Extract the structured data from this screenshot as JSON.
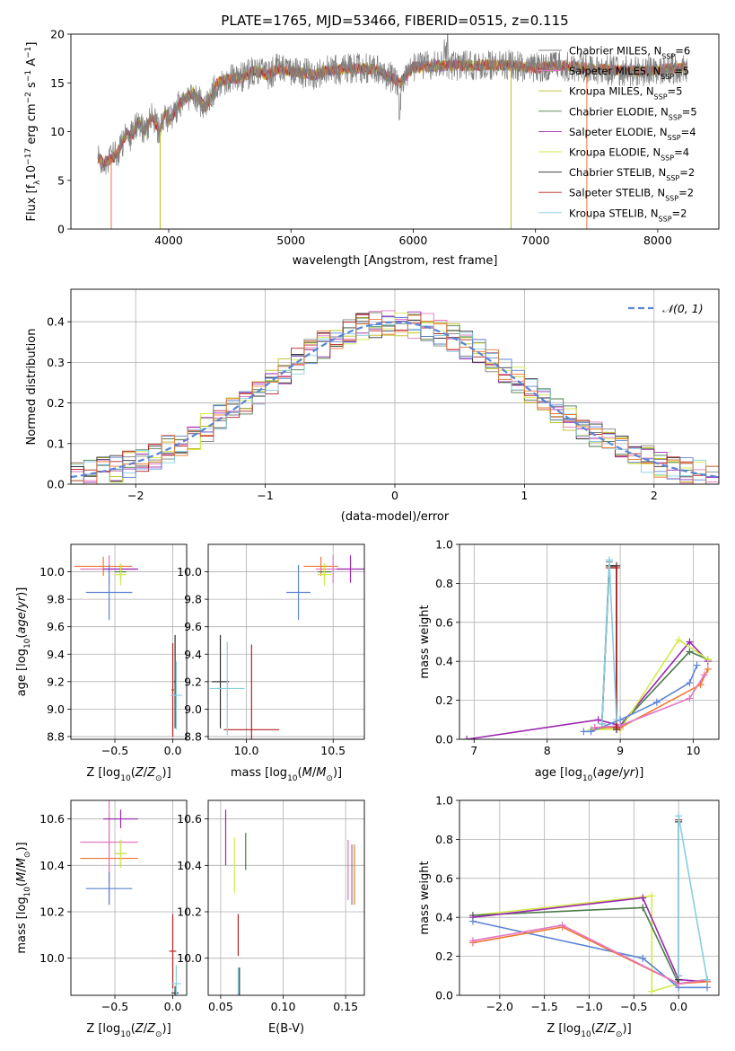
{
  "colors": {
    "Chabrier MILES": "#808080",
    "Salpeter MILES": "#e377c2",
    "Kroupa MILES": "#bcbd22",
    "Chabrier ELODIE": "#4a7a4a",
    "Salpeter ELODIE": "#9b27b0",
    "Kroupa ELODIE": "#d4ea4a",
    "Chabrier STELIB": "#333333",
    "Salpeter STELIB": "#b22222",
    "Kroupa STELIB": "#87cfe0",
    "blue": "#5b84d6",
    "orange": "#ee7733"
  },
  "chart_data": [
    {
      "id": "spectrum",
      "type": "line",
      "title": "PLATE=1765, MJD=53466, FIBERID=0515, z=0.115",
      "xlabel": "wavelength [Angstrom, rest frame]",
      "ylabel": "Flux [f_λ 10^-17 erg cm^-2 s^-1 A^-1]",
      "xlim": [
        3200,
        8500
      ],
      "ylim": [
        0,
        20
      ],
      "xticks": [
        4000,
        5000,
        6000,
        7000,
        8000
      ],
      "yticks": [
        0,
        5,
        10,
        15,
        20
      ],
      "grid": false,
      "legend_position": "right",
      "legend": [
        {
          "base": "Chabrier MILES, N",
          "sub": "SSP",
          "tail": "=6",
          "key": "Chabrier MILES"
        },
        {
          "base": "Salpeter MILES, N",
          "sub": "SSP",
          "tail": "=5",
          "key": "Salpeter MILES"
        },
        {
          "base": "Kroupa MILES, N",
          "sub": "SSP",
          "tail": "=5",
          "key": "Kroupa MILES"
        },
        {
          "base": "Chabrier ELODIE, N",
          "sub": "SSP",
          "tail": "=5",
          "key": "Chabrier ELODIE"
        },
        {
          "base": "Salpeter ELODIE, N",
          "sub": "SSP",
          "tail": "=4",
          "key": "Salpeter ELODIE"
        },
        {
          "base": "Kroupa ELODIE, N",
          "sub": "SSP",
          "tail": "=4",
          "key": "Kroupa ELODIE"
        },
        {
          "base": "Chabrier STELIB, N",
          "sub": "SSP",
          "tail": "=2",
          "key": "Chabrier STELIB"
        },
        {
          "base": "Salpeter STELIB, N",
          "sub": "SSP",
          "tail": "=2",
          "key": "Salpeter STELIB"
        },
        {
          "base": "Kroupa STELIB, N",
          "sub": "SSP",
          "tail": "=2",
          "key": "Kroupa STELIB"
        }
      ],
      "envelope": [
        [
          3420,
          7.3
        ],
        [
          3470,
          6.8
        ],
        [
          3550,
          7.4
        ],
        [
          3600,
          8.2
        ],
        [
          3650,
          9.8
        ],
        [
          3700,
          9.5
        ],
        [
          3750,
          11.0
        ],
        [
          3800,
          10.0
        ],
        [
          3860,
          11.5
        ],
        [
          3930,
          10.0
        ],
        [
          3970,
          12.0
        ],
        [
          4000,
          11.0
        ],
        [
          4100,
          13.0
        ],
        [
          4200,
          14.0
        ],
        [
          4300,
          12.5
        ],
        [
          4400,
          15.0
        ],
        [
          4500,
          15.5
        ],
        [
          4600,
          15.5
        ],
        [
          4700,
          16.3
        ],
        [
          4800,
          15.8
        ],
        [
          4900,
          16.5
        ],
        [
          5000,
          16.2
        ],
        [
          5100,
          16.0
        ],
        [
          5200,
          15.8
        ],
        [
          5300,
          16.3
        ],
        [
          5500,
          16.5
        ],
        [
          5700,
          16.4
        ],
        [
          5890,
          15.0
        ],
        [
          6000,
          16.6
        ],
        [
          6300,
          16.8
        ],
        [
          6560,
          16.8
        ],
        [
          6800,
          16.8
        ],
        [
          7000,
          16.5
        ],
        [
          7200,
          16.8
        ],
        [
          7500,
          16.4
        ],
        [
          7800,
          16.2
        ],
        [
          8000,
          16.3
        ],
        [
          8250,
          16.6
        ]
      ],
      "drops": [
        {
          "x": 3530,
          "series": "orange",
          "top": 7.2
        },
        {
          "x": 3930,
          "series": "Kroupa MILES",
          "top": 10.0
        },
        {
          "x": 6800,
          "series": "Kroupa MILES",
          "top": 16.5
        },
        {
          "x": 7420,
          "series": "orange",
          "top": 16.6
        }
      ]
    },
    {
      "id": "residuals",
      "type": "histogram",
      "xlabel": "(data-model)/error",
      "ylabel": "Normed distribution",
      "xlim": [
        -2.5,
        2.5
      ],
      "ylim": [
        0,
        0.48
      ],
      "xticks": [
        -2,
        -1,
        0,
        1,
        2
      ],
      "yticks": [
        0.0,
        0.1,
        0.2,
        0.3,
        0.4
      ],
      "grid": true,
      "legend_position": "top-right",
      "legend_label": "𝒩(0, 1)",
      "bin_edges_start": -2.5,
      "bin_width": 0.1,
      "base_curve": "normal(0,1)",
      "series_keys": [
        "Chabrier MILES",
        "Salpeter MILES",
        "Kroupa MILES",
        "Chabrier ELODIE",
        "Salpeter ELODIE",
        "Kroupa ELODIE",
        "Chabrier STELIB",
        "Salpeter STELIB",
        "Kroupa STELIB",
        "blue",
        "orange"
      ]
    },
    {
      "id": "age_vs_Z",
      "type": "errorbar",
      "xlabel": "Z [log10(Z/Z⊙)]",
      "ylabel": "age  [log10(age/yr)]",
      "xlim": [
        -0.88,
        0.12
      ],
      "ylim": [
        8.78,
        10.2
      ],
      "xticks": [
        -0.5,
        0.0
      ],
      "yticks": [
        8.8,
        9.0,
        9.2,
        9.4,
        9.6,
        9.8,
        10.0
      ],
      "grid": true,
      "points": [
        {
          "x": -0.6,
          "xe": 0.25,
          "y": 10.04,
          "ye": 0.07,
          "c": "orange"
        },
        {
          "x": -0.55,
          "xe": 0.25,
          "y": 10.02,
          "ye": 0.1,
          "c": "Salpeter MILES"
        },
        {
          "x": -0.55,
          "xe": 0.2,
          "y": 9.85,
          "ye": 0.2,
          "c": "blue"
        },
        {
          "x": -0.45,
          "xe": 0.15,
          "y": 10.02,
          "ye": 0.04,
          "c": "Salpeter ELODIE"
        },
        {
          "x": -0.45,
          "xe": 0.05,
          "y": 10.0,
          "ye": 0.06,
          "c": "Chabrier ELODIE"
        },
        {
          "x": -0.45,
          "xe": 0.05,
          "y": 9.98,
          "ye": 0.08,
          "c": "Kroupa ELODIE"
        },
        {
          "x": 0.0,
          "xe": 0.01,
          "y": 9.14,
          "ye": 0.34,
          "c": "Salpeter STELIB"
        },
        {
          "x": 0.02,
          "xe": 0.01,
          "y": 9.2,
          "ye": 0.34,
          "c": "Chabrier STELIB"
        },
        {
          "x": 0.03,
          "xe": 0.05,
          "y": 9.1,
          "ye": 0.25,
          "c": "Kroupa STELIB"
        }
      ]
    },
    {
      "id": "age_vs_mass",
      "type": "errorbar",
      "xlabel": "mass [log10(M/M⊙)]",
      "ylabel": "",
      "xlim": [
        9.78,
        10.68
      ],
      "ylim": [
        8.78,
        10.2
      ],
      "xticks": [
        10.0,
        10.5
      ],
      "yticks": [
        8.8,
        9.0,
        9.2,
        9.4,
        9.6,
        9.8,
        10.0
      ],
      "grid": true,
      "points": [
        {
          "x": 10.43,
          "xe": 0.1,
          "y": 10.04,
          "ye": 0.07,
          "c": "orange"
        },
        {
          "x": 10.5,
          "xe": 0.1,
          "y": 10.02,
          "ye": 0.1,
          "c": "Salpeter MILES"
        },
        {
          "x": 10.3,
          "xe": 0.07,
          "y": 9.85,
          "ye": 0.2,
          "c": "blue"
        },
        {
          "x": 10.6,
          "xe": 0.08,
          "y": 10.02,
          "ye": 0.1,
          "c": "Salpeter ELODIE"
        },
        {
          "x": 10.45,
          "xe": 0.04,
          "y": 10.0,
          "ye": 0.06,
          "c": "Chabrier ELODIE"
        },
        {
          "x": 10.45,
          "xe": 0.04,
          "y": 9.98,
          "ye": 0.08,
          "c": "Kroupa ELODIE"
        },
        {
          "x": 10.03,
          "xe": 0.16,
          "y": 8.85,
          "ye": 0.62,
          "c": "Salpeter STELIB"
        },
        {
          "x": 9.85,
          "xe": 0.05,
          "y": 9.2,
          "ye": 0.34,
          "c": "Chabrier STELIB"
        },
        {
          "x": 9.89,
          "xe": 0.1,
          "y": 9.15,
          "ye": 0.34,
          "c": "Kroupa STELIB"
        }
      ]
    },
    {
      "id": "weight_vs_age",
      "type": "line",
      "xlabel": "age  [log10(age/yr)]",
      "ylabel": "mass weight",
      "xlim": [
        6.8,
        10.35
      ],
      "ylim": [
        0,
        1.0
      ],
      "xticks": [
        7,
        8,
        9,
        10
      ],
      "yticks": [
        0.0,
        0.2,
        0.4,
        0.6,
        0.8,
        1.0
      ],
      "grid": true,
      "series": [
        {
          "c": "Salpeter ELODIE",
          "x": [
            6.9,
            8.7,
            9.0,
            9.95,
            10.2
          ],
          "y": [
            0.0,
            0.1,
            0.07,
            0.5,
            0.4
          ]
        },
        {
          "c": "Chabrier ELODIE",
          "x": [
            8.6,
            9.0,
            9.95,
            10.2
          ],
          "y": [
            0.05,
            0.07,
            0.45,
            0.41
          ]
        },
        {
          "c": "Kroupa ELODIE",
          "x": [
            8.6,
            9.0,
            9.8,
            10.2
          ],
          "y": [
            0.05,
            0.05,
            0.51,
            0.41
          ]
        },
        {
          "c": "blue",
          "x": [
            8.5,
            8.6,
            9.0,
            9.5,
            9.95,
            10.05
          ],
          "y": [
            0.04,
            0.04,
            0.1,
            0.19,
            0.29,
            0.38
          ]
        },
        {
          "c": "orange",
          "x": [
            8.65,
            9.0,
            10.1,
            10.2
          ],
          "y": [
            0.06,
            0.06,
            0.28,
            0.36
          ]
        },
        {
          "c": "Salpeter MILES",
          "x": [
            8.65,
            9.0,
            9.95,
            10.15
          ],
          "y": [
            0.06,
            0.07,
            0.21,
            0.33
          ]
        },
        {
          "c": "Chabrier MILES",
          "x": [
            8.75,
            8.85
          ],
          "y": [
            0.08,
            0.91
          ]
        },
        {
          "c": "Chabrier STELIB",
          "x": [
            8.75,
            8.85,
            8.95,
            8.95
          ],
          "y": [
            0.08,
            0.89,
            0.89,
            0.05
          ]
        },
        {
          "c": "Salpeter STELIB",
          "x": [
            8.85,
            8.95,
            8.95
          ],
          "y": [
            0.88,
            0.88,
            0.06
          ]
        },
        {
          "c": "Kroupa STELIB",
          "x": [
            8.75,
            8.85,
            8.95
          ],
          "y": [
            0.08,
            0.92,
            0.1
          ]
        }
      ]
    },
    {
      "id": "mass_vs_Z",
      "type": "errorbar",
      "xlabel": "Z [log10(Z/Z⊙)]",
      "ylabel": "mass [log10(M/M⊙)]",
      "xlim": [
        -0.88,
        0.12
      ],
      "ylim": [
        9.84,
        10.68
      ],
      "xticks": [
        -0.5,
        0.0
      ],
      "yticks": [
        10.0,
        10.2,
        10.4,
        10.6
      ],
      "grid": true,
      "points": [
        {
          "x": -0.55,
          "xe": 0.25,
          "y": 10.43,
          "ye": 0.2,
          "c": "orange"
        },
        {
          "x": -0.55,
          "xe": 0.25,
          "y": 10.5,
          "ye": 0.18,
          "c": "Salpeter MILES"
        },
        {
          "x": -0.55,
          "xe": 0.2,
          "y": 10.3,
          "ye": 0.07,
          "c": "blue"
        },
        {
          "x": -0.45,
          "xe": 0.15,
          "y": 10.6,
          "ye": 0.04,
          "c": "Salpeter ELODIE"
        },
        {
          "x": -0.45,
          "xe": 0.05,
          "y": 10.45,
          "ye": 0.06,
          "c": "Chabrier ELODIE"
        },
        {
          "x": -0.45,
          "xe": 0.05,
          "y": 10.45,
          "ye": 0.06,
          "c": "Kroupa ELODIE"
        },
        {
          "x": 0.0,
          "xe": 0.03,
          "y": 10.03,
          "ye": 0.16,
          "c": "Salpeter STELIB"
        },
        {
          "x": 0.02,
          "xe": 0.03,
          "y": 9.85,
          "ye": 0.03,
          "c": "Chabrier STELIB"
        },
        {
          "x": 0.03,
          "xe": 0.04,
          "y": 9.89,
          "ye": 0.08,
          "c": "Kroupa STELIB"
        }
      ]
    },
    {
      "id": "mass_vs_ebv",
      "type": "errorbar",
      "xlabel": "E(B-V)",
      "ylabel": "",
      "xlim": [
        0.04,
        0.165
      ],
      "ylim": [
        9.84,
        10.68
      ],
      "xticks": [
        0.05,
        0.1,
        0.15
      ],
      "yticks": [
        10.0,
        10.2,
        10.4,
        10.6
      ],
      "grid": true,
      "points": [
        {
          "x": 0.054,
          "xe": 0.0,
          "y": 10.52,
          "ye": 0.12,
          "c": "Salpeter ELODIE"
        },
        {
          "x": 0.061,
          "xe": 0.0,
          "y": 10.4,
          "ye": 0.12,
          "c": "Kroupa ELODIE"
        },
        {
          "x": 0.07,
          "xe": 0.0,
          "y": 10.46,
          "ye": 0.08,
          "c": "Chabrier ELODIE"
        },
        {
          "x": 0.064,
          "xe": 0.0,
          "y": 10.1,
          "ye": 0.09,
          "c": "Salpeter STELIB"
        },
        {
          "x": 0.064,
          "xe": 0.0,
          "y": 9.9,
          "ye": 0.06,
          "c": "Kroupa STELIB"
        },
        {
          "x": 0.065,
          "xe": 0.0,
          "y": 9.9,
          "ye": 0.06,
          "c": "Chabrier STELIB"
        },
        {
          "x": 0.152,
          "xe": 0.0,
          "y": 10.38,
          "ye": 0.13,
          "c": "Salpeter MILES"
        },
        {
          "x": 0.155,
          "xe": 0.0,
          "y": 10.36,
          "ye": 0.13,
          "c": "Chabrier MILES"
        },
        {
          "x": 0.157,
          "xe": 0.0,
          "y": 10.36,
          "ye": 0.13,
          "c": "orange"
        }
      ]
    },
    {
      "id": "weight_vs_Z",
      "type": "line",
      "xlabel": "Z [log10(Z/Z⊙)]",
      "ylabel": "mass weight",
      "xlim": [
        -2.45,
        0.45
      ],
      "ylim": [
        0,
        1.0
      ],
      "xticks": [
        -2.0,
        -1.5,
        -1.0,
        -0.5,
        0.0
      ],
      "yticks": [
        0.0,
        0.2,
        0.4,
        0.6,
        0.8,
        1.0
      ],
      "grid": true,
      "series": [
        {
          "c": "Kroupa ELODIE",
          "x": [
            -2.3,
            -0.3,
            -0.3,
            0.0,
            0.32
          ],
          "y": [
            0.41,
            0.51,
            0.02,
            0.06,
            0.08
          ]
        },
        {
          "c": "Chabrier ELODIE",
          "x": [
            -2.3,
            -0.4,
            0.0,
            0.32
          ],
          "y": [
            0.41,
            0.45,
            0.06,
            0.08
          ]
        },
        {
          "c": "Salpeter ELODIE",
          "x": [
            -2.3,
            -0.4,
            0.0,
            0.32
          ],
          "y": [
            0.4,
            0.5,
            0.08,
            0.07
          ]
        },
        {
          "c": "blue",
          "x": [
            -2.3,
            -0.4,
            0.0,
            0.32
          ],
          "y": [
            0.38,
            0.19,
            0.04,
            0.04
          ]
        },
        {
          "c": "orange",
          "x": [
            -2.3,
            -1.3,
            0.0,
            0.32
          ],
          "y": [
            0.27,
            0.35,
            0.06,
            0.07
          ]
        },
        {
          "c": "Salpeter MILES",
          "x": [
            -2.3,
            -1.3,
            0.0,
            0.32
          ],
          "y": [
            0.28,
            0.36,
            0.06,
            0.08
          ]
        },
        {
          "c": "Salpeter STELIB",
          "x": [
            0.0,
            0.0
          ],
          "y": [
            0.1,
            0.9
          ]
        },
        {
          "c": "Chabrier STELIB",
          "x": [
            0.0,
            0.0
          ],
          "y": [
            0.08,
            0.89
          ]
        },
        {
          "c": "Kroupa STELIB",
          "x": [
            0.0,
            0.0,
            0.32
          ],
          "y": [
            0.1,
            0.92,
            0.08
          ]
        }
      ]
    }
  ]
}
